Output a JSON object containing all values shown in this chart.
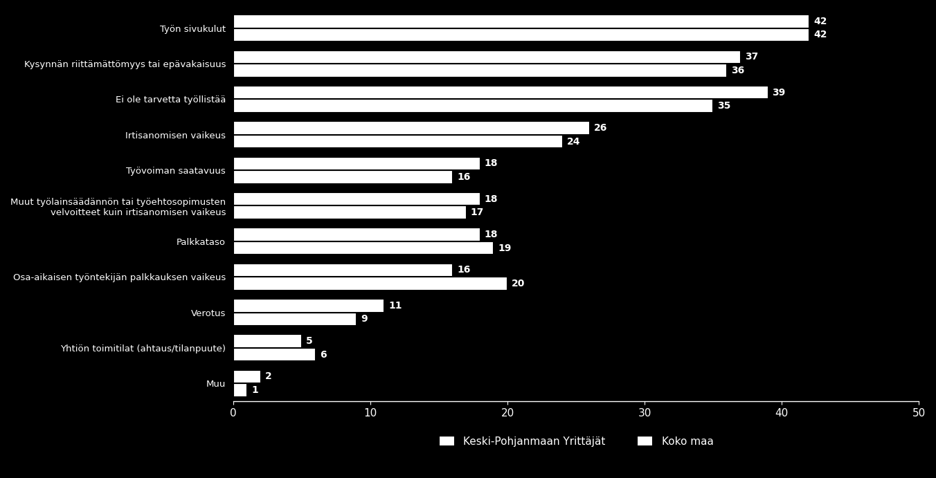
{
  "categories": [
    "Työn sivukulut",
    "Kysynnän riittämättömyys tai epävakaisuus",
    "Ei ole tarvetta työllistää",
    "Irtisanomisen vaikeus",
    "Työvoiman saatavuus",
    "Muut työlainsäädännön tai työehtosopimusten\nvelvoitteet kuin irtisanomisen vaikeus",
    "Palkkataso",
    "Osa-aikaisen työntekijän palkkauksen vaikeus",
    "Verotus",
    "Yhtiön toimitilat (ahtaus/tilanpuute)",
    "Muu"
  ],
  "keski_pohjanmaa": [
    42,
    36,
    35,
    24,
    16,
    17,
    19,
    20,
    9,
    6,
    1
  ],
  "koko_maa": [
    42,
    37,
    39,
    26,
    18,
    18,
    18,
    16,
    11,
    5,
    2
  ],
  "bar_color_keski": "#ffffff",
  "bar_color_koko": "#ffffff",
  "bar_edge_color": "#000000",
  "background_color": "#000000",
  "text_color": "#ffffff",
  "xlim": [
    0,
    50
  ],
  "legend_keski": "Keski-Pohjanmaan Yrittäjät",
  "legend_koko": "Koko maa",
  "bar_height": 0.38,
  "figsize": [
    13.52,
    6.91
  ],
  "dpi": 100
}
